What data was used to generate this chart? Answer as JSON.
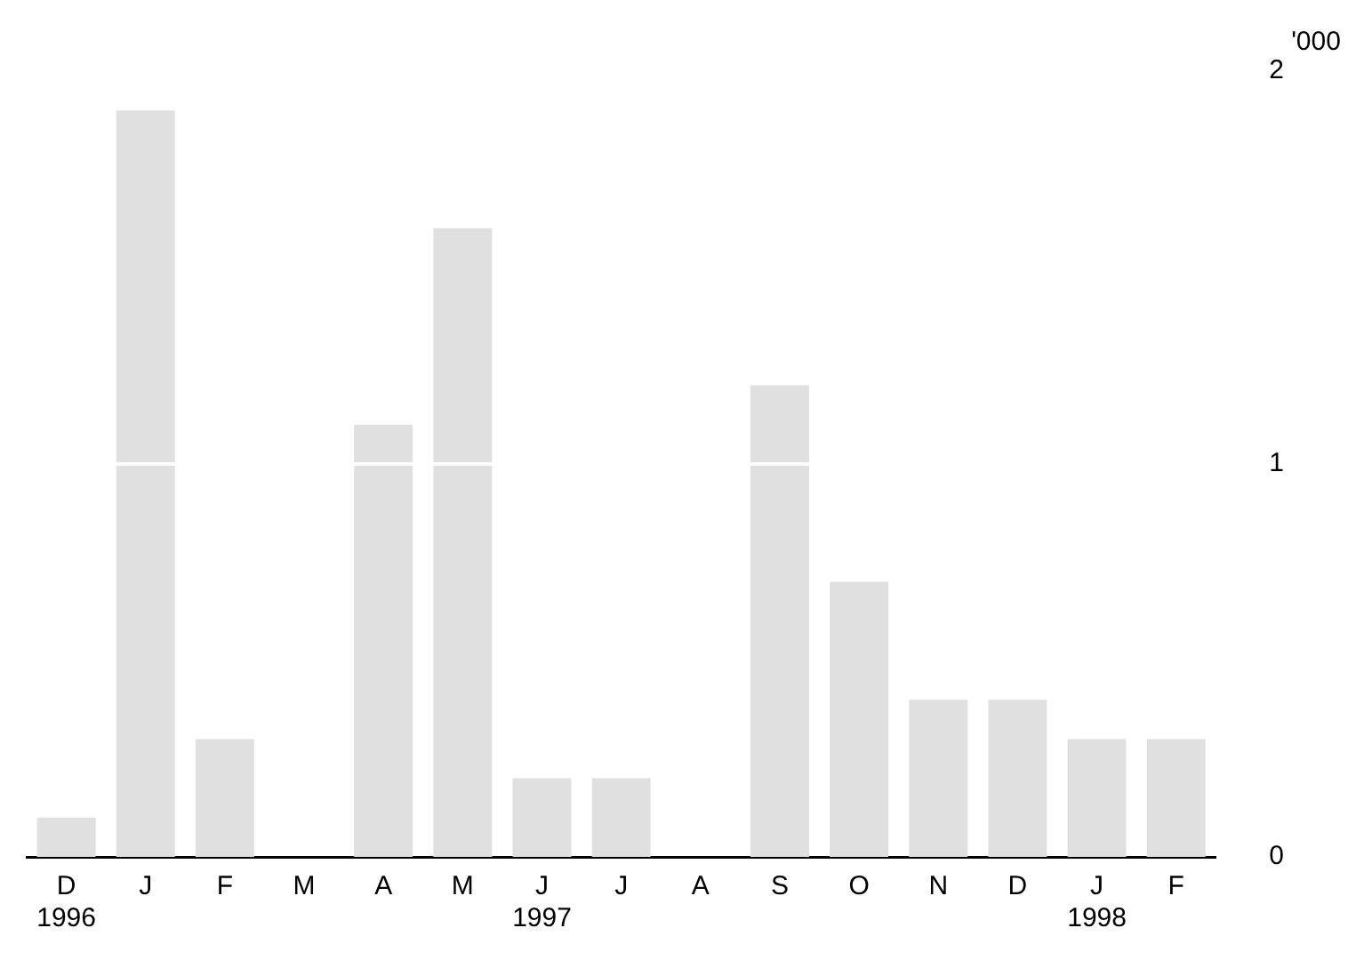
{
  "chart_data": {
    "type": "bar",
    "ylabel": "'000",
    "categories": [
      "D\n1996",
      "J",
      "F",
      "M",
      "A",
      "M",
      "J\n1997",
      "J",
      "A",
      "S",
      "O",
      "N",
      "D",
      "J\n1998",
      "F"
    ],
    "values": [
      0.1,
      1.9,
      0.3,
      0,
      1.1,
      1.6,
      0.2,
      0.2,
      0,
      1.2,
      0.7,
      0.4,
      0.4,
      0.3,
      0.3
    ],
    "color": "#e0e0e0",
    "ylim": [
      0,
      2
    ],
    "yticks": [
      0,
      1,
      2
    ],
    "grid": "y",
    "legend": false
  }
}
